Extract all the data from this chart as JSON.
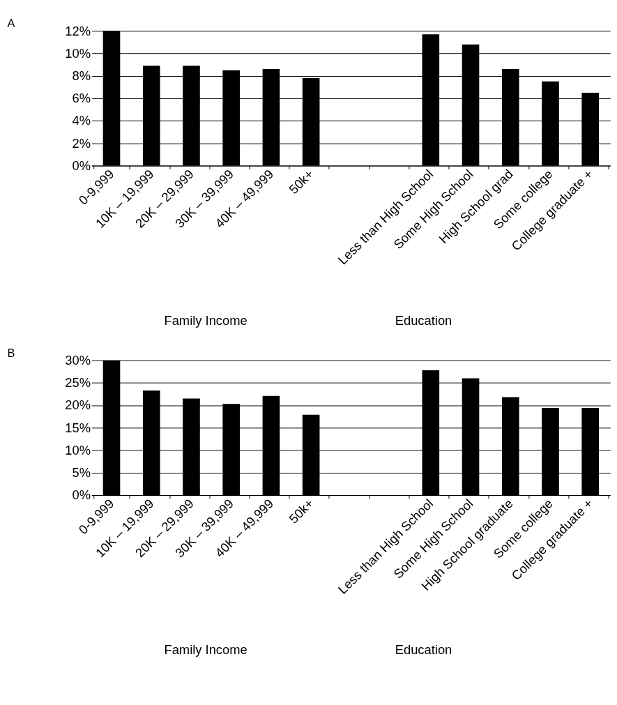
{
  "chart_data": [
    {
      "type": "bar",
      "title": "A",
      "categories": [
        "0-9,999",
        "10K – 19,999",
        "20K – 29,999",
        "30K – 39,999",
        "40K – 49,999",
        "50k+",
        null,
        null,
        "Less than High School",
        "Some High School",
        "High School grad",
        "Some college",
        "College graduate +"
      ],
      "series": [
        {
          "color": "#000000",
          "values": [
            12.0,
            8.9,
            8.9,
            8.5,
            8.6,
            7.8,
            null,
            null,
            11.7,
            10.8,
            8.6,
            7.5,
            6.5
          ]
        }
      ],
      "ylim": [
        0,
        12
      ],
      "yticks": [
        {
          "value": 0,
          "label": "0%"
        },
        {
          "value": 2,
          "label": "2%"
        },
        {
          "value": 4,
          "label": "4%"
        },
        {
          "value": 6,
          "label": "6%"
        },
        {
          "value": 8,
          "label": "8%"
        },
        {
          "value": 10,
          "label": "10%"
        },
        {
          "value": 12,
          "label": "12%"
        }
      ],
      "grid": "y",
      "annotations": [
        "Family Income",
        "Education"
      ]
    },
    {
      "type": "bar",
      "title": "B",
      "categories": [
        "0-9,999",
        "10K – 19,999",
        "20K – 29,999",
        "30K – 39,999",
        "40K – 49,999",
        "50k+",
        null,
        null,
        "Less than High School",
        "Some High School",
        "High School graduate",
        "Some college",
        "College graduate +"
      ],
      "series": [
        {
          "color": "#000000",
          "values": [
            30.0,
            23.3,
            21.5,
            20.3,
            22.1,
            17.9,
            null,
            null,
            27.8,
            26.0,
            21.8,
            19.4,
            19.4
          ]
        }
      ],
      "ylim": [
        0,
        30
      ],
      "yticks": [
        {
          "value": 0,
          "label": "0%"
        },
        {
          "value": 5,
          "label": "5%"
        },
        {
          "value": 10,
          "label": "10%"
        },
        {
          "value": 15,
          "label": "15%"
        },
        {
          "value": 20,
          "label": "20%"
        },
        {
          "value": 25,
          "label": "25%"
        },
        {
          "value": 30,
          "label": "30%"
        }
      ],
      "grid": "y",
      "annotations": [
        "Family Income",
        "Education"
      ]
    }
  ]
}
